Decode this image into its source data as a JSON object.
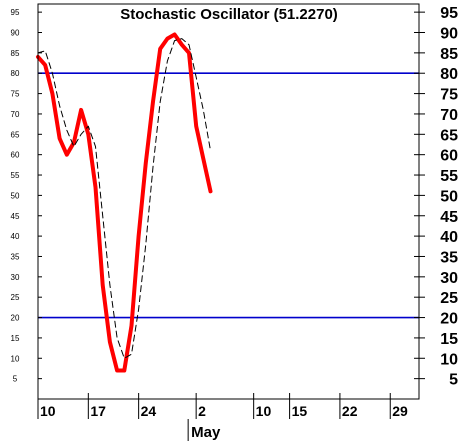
{
  "chart_data": {
    "type": "line",
    "title": "Stochastic Oscillator (51.2270)",
    "x_tick_labels": [
      "10",
      "17",
      "24",
      "2",
      "10",
      "15",
      "22",
      "29"
    ],
    "x_tick_days": [
      0,
      7,
      14,
      22,
      30,
      35,
      42,
      49
    ],
    "x_month_label": "May",
    "x_month_start_day": 22,
    "x_range_days": [
      0,
      53
    ],
    "ylim": [
      0,
      97
    ],
    "y_ticks_left": [
      5,
      10,
      15,
      20,
      25,
      30,
      35,
      40,
      45,
      50,
      55,
      60,
      65,
      70,
      75,
      80,
      85,
      90,
      95
    ],
    "y_ticks_right": [
      5,
      10,
      15,
      20,
      25,
      30,
      35,
      40,
      45,
      50,
      55,
      60,
      65,
      70,
      75,
      80,
      85,
      90,
      95
    ],
    "reference_lines": [
      80,
      20
    ],
    "grid": false,
    "series": [
      {
        "style": "solid",
        "color": "#ff0000",
        "points": [
          [
            0,
            84
          ],
          [
            1,
            82
          ],
          [
            2,
            75
          ],
          [
            3,
            64
          ],
          [
            4,
            60
          ],
          [
            5,
            63
          ],
          [
            6,
            71
          ],
          [
            7,
            65
          ],
          [
            8,
            52
          ],
          [
            9,
            28
          ],
          [
            10,
            14
          ],
          [
            11,
            7
          ],
          [
            12,
            7
          ],
          [
            13,
            18
          ],
          [
            14,
            40
          ],
          [
            15,
            58
          ],
          [
            16,
            73
          ],
          [
            17,
            86
          ],
          [
            18,
            88.5
          ],
          [
            19,
            89.5
          ],
          [
            20,
            87
          ],
          [
            21,
            85
          ],
          [
            22,
            67
          ],
          [
            23,
            59
          ],
          [
            24,
            51
          ]
        ]
      },
      {
        "style": "dashed",
        "color": "#000000",
        "points": [
          [
            0,
            85
          ],
          [
            1,
            85.5
          ],
          [
            2,
            80
          ],
          [
            3,
            72
          ],
          [
            4,
            66
          ],
          [
            5,
            62
          ],
          [
            6,
            65
          ],
          [
            7,
            67
          ],
          [
            8,
            62
          ],
          [
            9,
            45
          ],
          [
            10,
            28
          ],
          [
            11,
            15
          ],
          [
            12,
            10
          ],
          [
            13,
            11
          ],
          [
            14,
            22
          ],
          [
            15,
            38
          ],
          [
            16,
            57
          ],
          [
            17,
            73
          ],
          [
            18,
            83
          ],
          [
            19,
            88
          ],
          [
            20,
            88.5
          ],
          [
            21,
            87
          ],
          [
            22,
            79
          ],
          [
            23,
            71
          ],
          [
            24,
            61
          ]
        ]
      }
    ]
  }
}
